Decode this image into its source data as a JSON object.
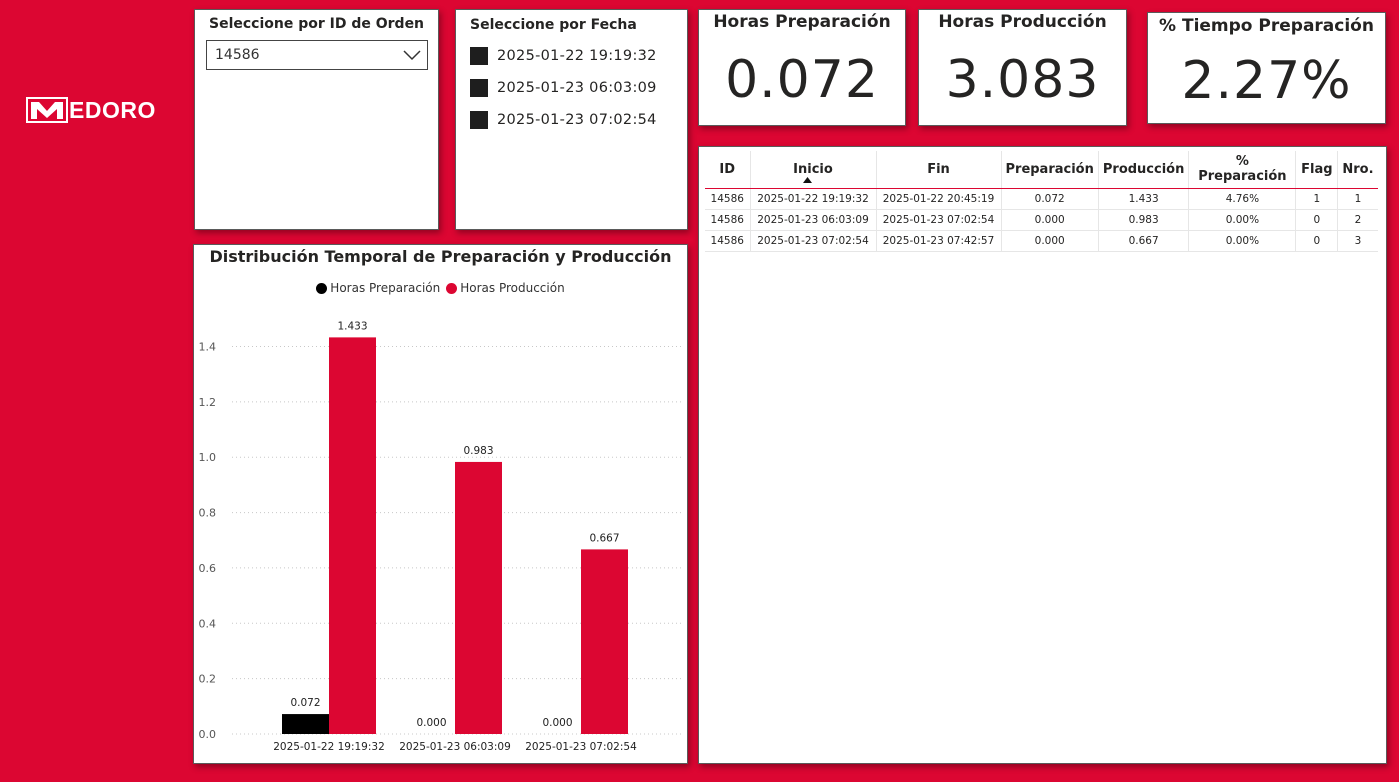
{
  "brand": {
    "logo_text": "EDORO"
  },
  "slicer_order": {
    "title": "Seleccione por ID de Orden",
    "selected": "14586"
  },
  "slicer_date": {
    "title": "Seleccione por Fecha",
    "items": [
      "2025-01-22 19:19:32",
      "2025-01-23 06:03:09",
      "2025-01-23 07:02:54"
    ]
  },
  "kpis": [
    {
      "title": "Horas Preparación",
      "value": "0.072"
    },
    {
      "title": "Horas Producción",
      "value": "3.083"
    },
    {
      "title": "% Tiempo Preparación",
      "value": "2.27%"
    }
  ],
  "colors": {
    "accent": "#dc0632",
    "preparacion": "#000000",
    "produccion": "#dc0632"
  },
  "chart_data": {
    "type": "bar",
    "title": "Distribución Temporal de Preparación y Producción",
    "categories": [
      "2025-01-22 19:19:32",
      "2025-01-23 06:03:09",
      "2025-01-23 07:02:54"
    ],
    "series": [
      {
        "name": "Horas Preparación",
        "values": [
          0.072,
          0.0,
          0.0
        ],
        "labels": [
          "0.072",
          "0.000",
          "0.000"
        ]
      },
      {
        "name": "Horas Producción",
        "values": [
          1.433,
          0.983,
          0.667
        ],
        "labels": [
          "1.433",
          "0.983",
          "0.667"
        ]
      }
    ],
    "yticks": [
      "0.0",
      "0.2",
      "0.4",
      "0.6",
      "0.8",
      "1.0",
      "1.2",
      "1.4"
    ],
    "ylim": [
      0,
      1.55
    ],
    "grid": true,
    "legend_position": "top-center"
  },
  "table": {
    "columns": [
      "ID",
      "Inicio",
      "Fin",
      "Preparación",
      "Producción",
      "% Preparación",
      "Flag",
      "Nro."
    ],
    "rows": [
      [
        "14586",
        "2025-01-22 19:19:32",
        "2025-01-22 20:45:19",
        "0.072",
        "1.433",
        "4.76%",
        "1",
        "1"
      ],
      [
        "14586",
        "2025-01-23 06:03:09",
        "2025-01-23 07:02:54",
        "0.000",
        "0.983",
        "0.00%",
        "0",
        "2"
      ],
      [
        "14586",
        "2025-01-23 07:02:54",
        "2025-01-23 07:42:57",
        "0.000",
        "0.667",
        "0.00%",
        "0",
        "3"
      ]
    ]
  }
}
